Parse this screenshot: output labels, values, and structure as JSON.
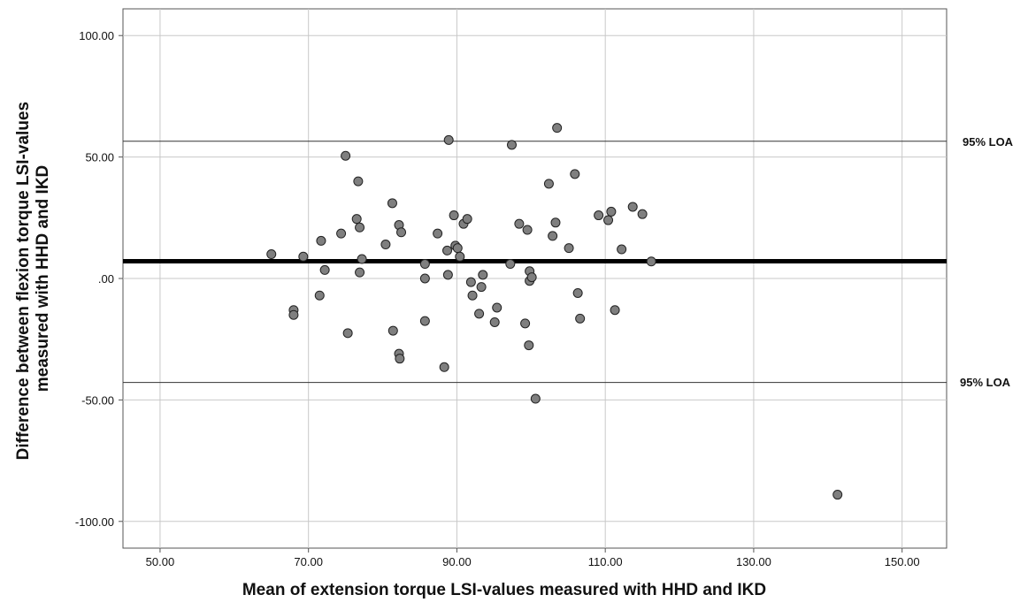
{
  "chart_data": {
    "type": "scatter",
    "title": "",
    "xlabel": "Mean of extension torque LSI-values measured with HHD and IKD",
    "ylabel_lines": [
      "Difference between flexion torque LSI-values",
      "measured with HHD and IKD"
    ],
    "xlim": [
      45,
      156
    ],
    "ylim": [
      -111,
      111
    ],
    "x_ticks": [
      50,
      70,
      90,
      110,
      130,
      150
    ],
    "x_tick_labels": [
      "50.00",
      "70.00",
      "90.00",
      "110.00",
      "130.00",
      "150.00"
    ],
    "y_ticks": [
      100,
      50,
      0,
      -50,
      -100
    ],
    "y_tick_labels": [
      "100.00",
      "50.00",
      ".00",
      "-50.00",
      "-100.00"
    ],
    "grid": true,
    "mean_difference": 7.1,
    "loa_upper": 56.5,
    "loa_lower": -42.8,
    "loa_label": "95% LOA",
    "marker_color": "#7f7f7f",
    "points": [
      [
        65.0,
        10.0
      ],
      [
        68.0,
        -13.0
      ],
      [
        68.0,
        -15.0
      ],
      [
        69.3,
        9.0
      ],
      [
        71.5,
        -7.0
      ],
      [
        71.7,
        15.5
      ],
      [
        72.2,
        3.5
      ],
      [
        74.4,
        18.5
      ],
      [
        75.0,
        50.5
      ],
      [
        75.3,
        -22.5
      ],
      [
        76.5,
        24.5
      ],
      [
        76.7,
        40.0
      ],
      [
        76.9,
        21.0
      ],
      [
        76.9,
        2.5
      ],
      [
        77.2,
        8.0
      ],
      [
        80.4,
        14.0
      ],
      [
        81.3,
        31.0
      ],
      [
        81.4,
        -21.5
      ],
      [
        82.2,
        22.0
      ],
      [
        82.2,
        -31.0
      ],
      [
        82.3,
        -33.0
      ],
      [
        82.5,
        19.0
      ],
      [
        85.7,
        6.0
      ],
      [
        85.7,
        0.0
      ],
      [
        85.7,
        -17.5
      ],
      [
        87.4,
        18.5
      ],
      [
        88.3,
        -36.5
      ],
      [
        88.7,
        11.5
      ],
      [
        88.8,
        1.5
      ],
      [
        88.9,
        57.0
      ],
      [
        89.6,
        26.0
      ],
      [
        89.8,
        13.5
      ],
      [
        90.1,
        12.5
      ],
      [
        90.4,
        9.0
      ],
      [
        90.9,
        22.5
      ],
      [
        91.4,
        24.5
      ],
      [
        91.9,
        -1.5
      ],
      [
        92.1,
        -7.0
      ],
      [
        93.0,
        -14.5
      ],
      [
        93.3,
        -3.5
      ],
      [
        93.5,
        1.5
      ],
      [
        95.1,
        -18.0
      ],
      [
        95.4,
        -12.0
      ],
      [
        97.2,
        6.0
      ],
      [
        97.4,
        55.0
      ],
      [
        98.4,
        22.5
      ],
      [
        99.2,
        -18.5
      ],
      [
        99.5,
        20.0
      ],
      [
        99.7,
        -27.5
      ],
      [
        99.8,
        3.0
      ],
      [
        99.8,
        -1.0
      ],
      [
        100.1,
        0.5
      ],
      [
        100.6,
        -49.5
      ],
      [
        102.4,
        39.0
      ],
      [
        102.9,
        17.5
      ],
      [
        103.3,
        23.0
      ],
      [
        103.5,
        62.0
      ],
      [
        105.1,
        12.5
      ],
      [
        105.9,
        43.0
      ],
      [
        106.3,
        -6.0
      ],
      [
        106.6,
        -16.5
      ],
      [
        109.1,
        26.0
      ],
      [
        110.4,
        24.0
      ],
      [
        110.8,
        27.5
      ],
      [
        111.3,
        -13.0
      ],
      [
        112.2,
        12.0
      ],
      [
        113.7,
        29.5
      ],
      [
        115.0,
        26.5
      ],
      [
        116.2,
        7.0
      ],
      [
        141.3,
        -89.0
      ]
    ]
  }
}
